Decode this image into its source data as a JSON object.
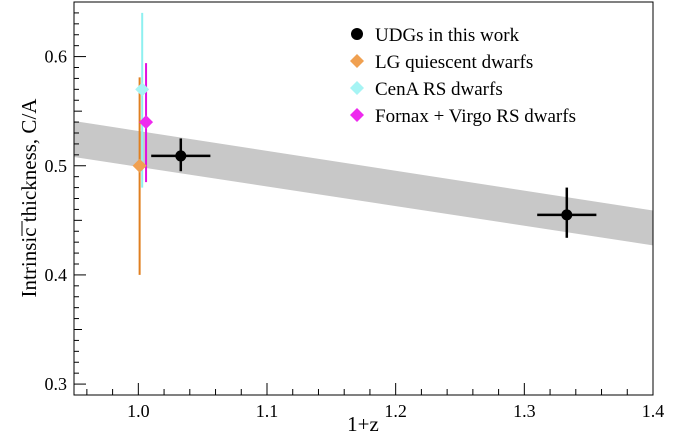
{
  "chart_data": {
    "type": "scatter",
    "xlabel": "1+z",
    "ylabel": "Intrinsic thickness, C/A",
    "xlim": [
      0.95,
      1.4
    ],
    "ylim": [
      0.29,
      0.65
    ],
    "x_ticks": [
      1.0,
      1.1,
      1.2,
      1.3,
      1.4
    ],
    "x_tick_labels": [
      "1.0",
      "1.1",
      "1.2",
      "1.3",
      "1.4"
    ],
    "y_ticks": [
      0.3,
      0.4,
      0.5,
      0.6
    ],
    "y_tick_labels": [
      "0.3",
      "0.4",
      "0.5",
      "0.6"
    ],
    "grid": false,
    "legend_position": "top-right",
    "band": {
      "color": "#c8c8c8",
      "upper": [
        [
          0.95,
          0.541
        ],
        [
          1.4,
          0.459
        ]
      ],
      "lower": [
        [
          0.95,
          0.508
        ],
        [
          1.4,
          0.427
        ]
      ]
    },
    "series": [
      {
        "name": "UDGs in this work",
        "marker": "circle",
        "color": "#000000",
        "points": [
          {
            "x": 1.033,
            "y": 0.509,
            "xerr": 0.023,
            "yerr_low": 0.014,
            "yerr_high": 0.016
          },
          {
            "x": 1.333,
            "y": 0.455,
            "xerr": 0.023,
            "yerr_low": 0.021,
            "yerr_high": 0.025
          }
        ]
      },
      {
        "name": "LG quiescent dwarfs",
        "marker": "diamond",
        "color": "#f0a050",
        "errcolor": "#e07f20",
        "points": [
          {
            "x": 1.001,
            "y": 0.5,
            "yerr_low": 0.1,
            "yerr_high": 0.081
          }
        ]
      },
      {
        "name": "CenA RS dwarfs",
        "marker": "diamond",
        "color": "#a6f4f4",
        "errcolor": "#8ef0f0",
        "points": [
          {
            "x": 1.003,
            "y": 0.57,
            "yerr_low": 0.09,
            "yerr_high": 0.07
          }
        ]
      },
      {
        "name": "Fornax + Virgo RS dwarfs",
        "marker": "diamond",
        "color": "#ee2aee",
        "errcolor": "#e010e0",
        "points": [
          {
            "x": 1.006,
            "y": 0.54,
            "yerr_low": 0.055,
            "yerr_high": 0.054
          }
        ]
      }
    ]
  }
}
